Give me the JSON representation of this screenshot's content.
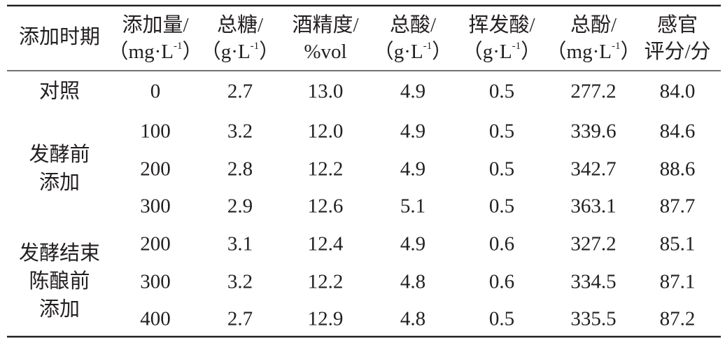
{
  "table": {
    "headers": [
      {
        "lines": [
          {
            "text": "添加时期"
          }
        ]
      },
      {
        "lines": [
          {
            "text": "添加量/"
          },
          {
            "text": "（mg·L",
            "sup": "-1",
            "tail": "）"
          }
        ]
      },
      {
        "lines": [
          {
            "text": "总糖/"
          },
          {
            "text": "（g·L",
            "sup": "-1",
            "tail": "）"
          }
        ]
      },
      {
        "lines": [
          {
            "text": "酒精度/"
          },
          {
            "text": "%vol"
          }
        ]
      },
      {
        "lines": [
          {
            "text": "总酸/"
          },
          {
            "text": "（g·L",
            "sup": "-1",
            "tail": "）"
          }
        ]
      },
      {
        "lines": [
          {
            "text": "挥发酸/"
          },
          {
            "text": "（g·L",
            "sup": "-1",
            "tail": "）"
          }
        ]
      },
      {
        "lines": [
          {
            "text": "总酚/"
          },
          {
            "text": "（mg·L",
            "sup": "-1",
            "tail": "）"
          }
        ]
      },
      {
        "lines": [
          {
            "text": "感官"
          },
          {
            "text": "评分/分"
          }
        ]
      }
    ],
    "groups": [
      {
        "label": [
          "对照"
        ],
        "rows": [
          [
            "0",
            "2.7",
            "13.0",
            "4.9",
            "0.5",
            "277.2",
            "84.0"
          ]
        ]
      },
      {
        "label": [
          "发酵前",
          "添加"
        ],
        "rows": [
          [
            "100",
            "3.2",
            "12.0",
            "4.9",
            "0.5",
            "339.6",
            "84.6"
          ],
          [
            "200",
            "2.8",
            "12.2",
            "4.9",
            "0.5",
            "342.7",
            "88.6"
          ],
          [
            "300",
            "2.9",
            "12.6",
            "5.1",
            "0.5",
            "363.1",
            "87.7"
          ]
        ]
      },
      {
        "label": [
          "发酵结束",
          "陈酿前",
          "添加"
        ],
        "rows": [
          [
            "200",
            "3.1",
            "12.4",
            "4.9",
            "0.6",
            "327.2",
            "85.1"
          ],
          [
            "300",
            "3.2",
            "12.2",
            "4.8",
            "0.6",
            "334.5",
            "87.1"
          ],
          [
            "400",
            "2.7",
            "12.9",
            "4.8",
            "0.5",
            "335.5",
            "87.2"
          ]
        ]
      }
    ]
  }
}
